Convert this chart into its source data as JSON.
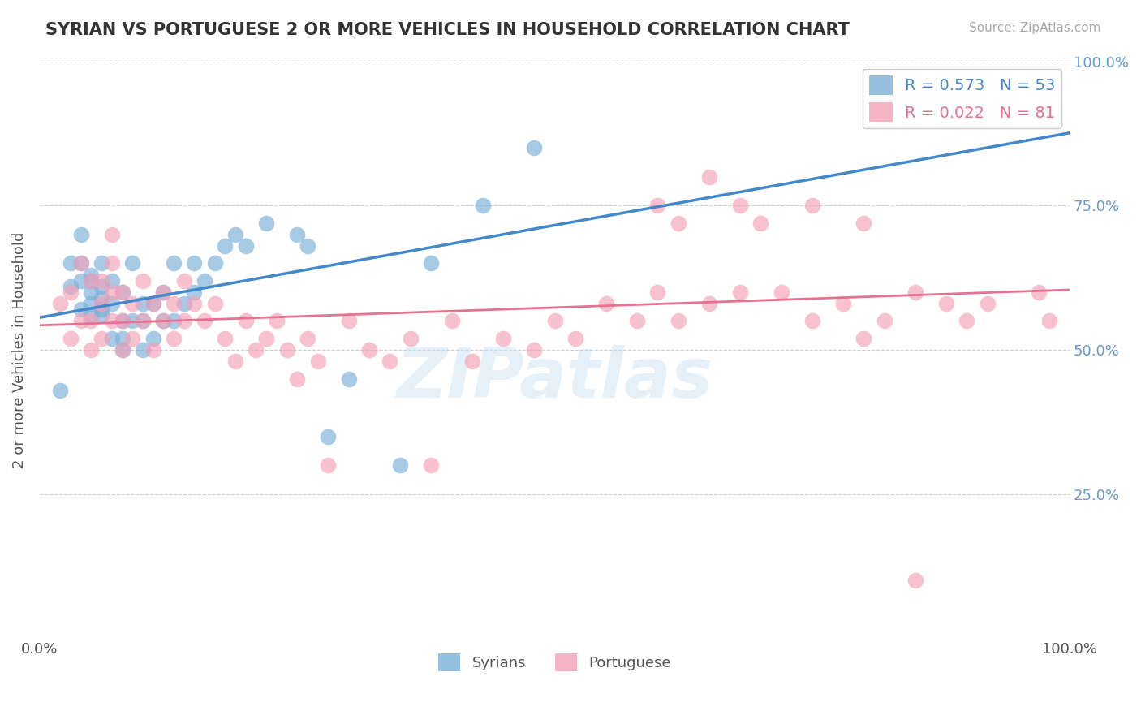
{
  "title": "SYRIAN VS PORTUGUESE 2 OR MORE VEHICLES IN HOUSEHOLD CORRELATION CHART",
  "source_text": "Source: ZipAtlas.com",
  "ylabel": "2 or more Vehicles in Household",
  "xlim": [
    0,
    1.0
  ],
  "ylim": [
    0,
    1.0
  ],
  "syrian_color": "#7ab0d8",
  "portuguese_color": "#f4a0b8",
  "syrian_line_color": "#4488cc",
  "portuguese_line_color": "#e87090",
  "grid_color": "#cccccc",
  "background_color": "#ffffff",
  "syrians_x": [
    0.02,
    0.03,
    0.03,
    0.04,
    0.04,
    0.04,
    0.04,
    0.05,
    0.05,
    0.05,
    0.05,
    0.05,
    0.06,
    0.06,
    0.06,
    0.06,
    0.06,
    0.07,
    0.07,
    0.07,
    0.08,
    0.08,
    0.08,
    0.08,
    0.09,
    0.09,
    0.1,
    0.1,
    0.1,
    0.11,
    0.11,
    0.12,
    0.12,
    0.13,
    0.13,
    0.14,
    0.15,
    0.15,
    0.16,
    0.17,
    0.18,
    0.19,
    0.2,
    0.22,
    0.25,
    0.26,
    0.28,
    0.3,
    0.35,
    0.38,
    0.43,
    0.48,
    0.95
  ],
  "syrians_y": [
    0.43,
    0.61,
    0.65,
    0.57,
    0.62,
    0.65,
    0.7,
    0.56,
    0.58,
    0.6,
    0.62,
    0.63,
    0.56,
    0.57,
    0.59,
    0.61,
    0.65,
    0.52,
    0.58,
    0.62,
    0.5,
    0.52,
    0.55,
    0.6,
    0.55,
    0.65,
    0.5,
    0.55,
    0.58,
    0.52,
    0.58,
    0.55,
    0.6,
    0.55,
    0.65,
    0.58,
    0.6,
    0.65,
    0.62,
    0.65,
    0.68,
    0.7,
    0.68,
    0.72,
    0.7,
    0.68,
    0.35,
    0.45,
    0.3,
    0.65,
    0.75,
    0.85,
    0.97
  ],
  "portuguese_x": [
    0.02,
    0.03,
    0.03,
    0.04,
    0.04,
    0.05,
    0.05,
    0.05,
    0.06,
    0.06,
    0.06,
    0.07,
    0.07,
    0.07,
    0.07,
    0.08,
    0.08,
    0.08,
    0.09,
    0.09,
    0.1,
    0.1,
    0.11,
    0.11,
    0.12,
    0.12,
    0.13,
    0.13,
    0.14,
    0.14,
    0.15,
    0.16,
    0.17,
    0.18,
    0.19,
    0.2,
    0.21,
    0.22,
    0.23,
    0.24,
    0.25,
    0.26,
    0.27,
    0.28,
    0.3,
    0.32,
    0.34,
    0.36,
    0.38,
    0.4,
    0.42,
    0.45,
    0.48,
    0.5,
    0.52,
    0.55,
    0.58,
    0.6,
    0.62,
    0.65,
    0.68,
    0.72,
    0.75,
    0.78,
    0.8,
    0.82,
    0.85,
    0.88,
    0.9,
    0.92,
    0.95,
    0.97,
    0.98,
    0.6,
    0.62,
    0.65,
    0.68,
    0.7,
    0.75,
    0.8,
    0.85
  ],
  "portuguese_y": [
    0.58,
    0.52,
    0.6,
    0.55,
    0.65,
    0.5,
    0.55,
    0.62,
    0.52,
    0.58,
    0.62,
    0.55,
    0.6,
    0.65,
    0.7,
    0.5,
    0.55,
    0.6,
    0.52,
    0.58,
    0.55,
    0.62,
    0.5,
    0.58,
    0.55,
    0.6,
    0.52,
    0.58,
    0.55,
    0.62,
    0.58,
    0.55,
    0.58,
    0.52,
    0.48,
    0.55,
    0.5,
    0.52,
    0.55,
    0.5,
    0.45,
    0.52,
    0.48,
    0.3,
    0.55,
    0.5,
    0.48,
    0.52,
    0.3,
    0.55,
    0.48,
    0.52,
    0.5,
    0.55,
    0.52,
    0.58,
    0.55,
    0.6,
    0.55,
    0.58,
    0.6,
    0.6,
    0.55,
    0.58,
    0.52,
    0.55,
    0.6,
    0.58,
    0.55,
    0.58,
    0.97,
    0.6,
    0.55,
    0.75,
    0.72,
    0.8,
    0.75,
    0.72,
    0.75,
    0.72,
    0.1
  ],
  "legend_r_syrian": "R = 0.573",
  "legend_n_syrian": "N = 53",
  "legend_r_portuguese": "R = 0.022",
  "legend_n_portuguese": "N = 81",
  "legend_label_syrian": "Syrians",
  "legend_label_portuguese": "Portuguese",
  "ytick_positions": [
    0.25,
    0.5,
    0.75,
    1.0
  ],
  "ytick_labels": [
    "25.0%",
    "50.0%",
    "75.0%",
    "100.0%"
  ],
  "xtick_positions": [
    0.0,
    1.0
  ],
  "xtick_labels": [
    "0.0%",
    "100.0%"
  ]
}
